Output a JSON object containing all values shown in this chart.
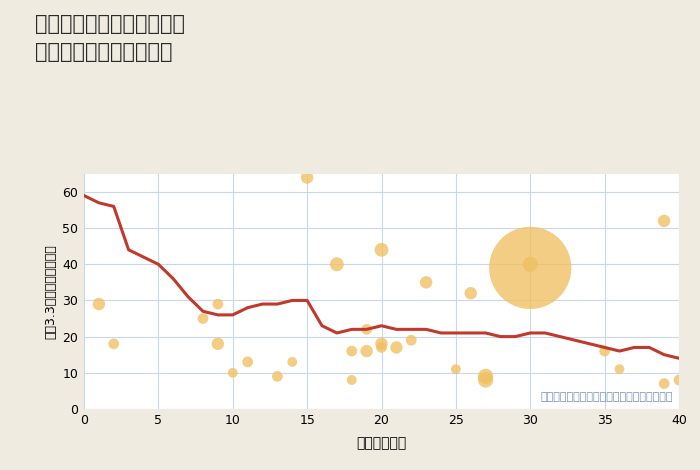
{
  "title": "兵庫県豊岡市但東町矢根の\n築年数別中古戸建て価格",
  "xlabel": "築年数（年）",
  "ylabel": "坪（3.3㎡）単価（万円）",
  "bg_color": "#f0ebe0",
  "plot_bg_color": "#ffffff",
  "xlim": [
    0,
    40
  ],
  "ylim": [
    0,
    65
  ],
  "xticks": [
    0,
    5,
    10,
    15,
    20,
    25,
    30,
    35,
    40
  ],
  "yticks": [
    0,
    10,
    20,
    30,
    40,
    50,
    60
  ],
  "line_x": [
    0,
    1,
    2,
    3,
    4,
    5,
    6,
    7,
    8,
    9,
    10,
    11,
    12,
    13,
    14,
    15,
    16,
    17,
    18,
    19,
    20,
    21,
    22,
    23,
    24,
    25,
    26,
    27,
    28,
    29,
    30,
    31,
    32,
    33,
    34,
    35,
    36,
    37,
    38,
    39,
    40
  ],
  "line_y": [
    59,
    57,
    56,
    44,
    42,
    40,
    36,
    31,
    27,
    26,
    26,
    28,
    29,
    29,
    30,
    30,
    23,
    21,
    22,
    22,
    23,
    22,
    22,
    22,
    21,
    21,
    21,
    21,
    20,
    20,
    21,
    21,
    20,
    19,
    18,
    17,
    16,
    17,
    17,
    15,
    14
  ],
  "line_color": "#c0392b",
  "line_width": 2.2,
  "scatter_x": [
    1,
    2,
    8,
    9,
    9,
    10,
    11,
    13,
    14,
    15,
    17,
    18,
    18,
    19,
    19,
    20,
    20,
    20,
    21,
    22,
    23,
    25,
    26,
    27,
    27,
    30,
    30,
    35,
    36,
    39,
    39,
    40
  ],
  "scatter_y": [
    29,
    18,
    25,
    18,
    29,
    10,
    13,
    9,
    13,
    64,
    40,
    8,
    16,
    16,
    22,
    17,
    18,
    44,
    17,
    19,
    35,
    11,
    32,
    8,
    9,
    40,
    39,
    16,
    11,
    7,
    52,
    8
  ],
  "scatter_size": [
    80,
    60,
    60,
    80,
    60,
    50,
    60,
    60,
    50,
    80,
    100,
    50,
    60,
    80,
    60,
    60,
    80,
    100,
    80,
    60,
    80,
    50,
    80,
    120,
    120,
    120,
    3500,
    60,
    50,
    60,
    80,
    60
  ],
  "scatter_color": "#f0c060",
  "scatter_alpha": 0.78,
  "annotation": "円の大きさは、取引のあった物件面積を示す",
  "annotation_color": "#7090c0",
  "annotation_fontsize": 8.0
}
